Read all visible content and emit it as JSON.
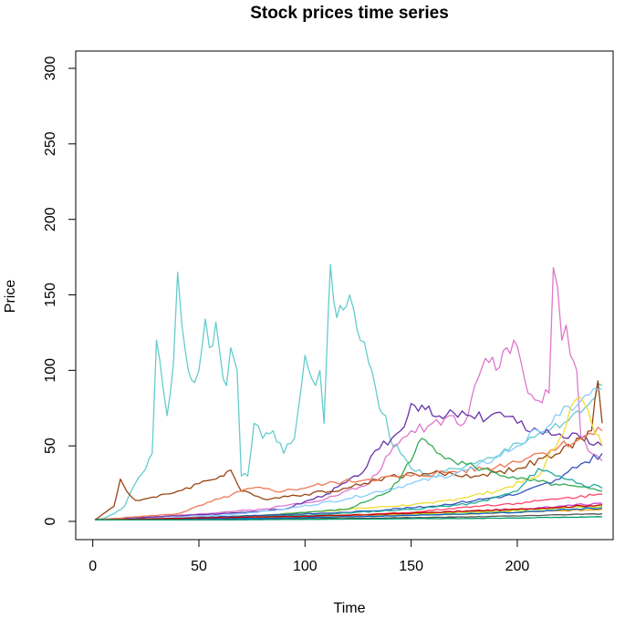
{
  "chart_data": {
    "type": "line",
    "title": "Stock prices time series",
    "xlabel": "Time",
    "ylabel": "Price",
    "xlim": [
      1,
      240
    ],
    "ylim": [
      0,
      300
    ],
    "xticks": [
      0,
      50,
      100,
      150,
      200
    ],
    "yticks": [
      0,
      50,
      100,
      150,
      200,
      250,
      300
    ],
    "legend": "none",
    "grid": false,
    "series": [
      {
        "color": "#66CCCC",
        "points": [
          [
            1,
            1
          ],
          [
            5,
            2
          ],
          [
            10,
            5
          ],
          [
            15,
            10
          ],
          [
            20,
            25
          ],
          [
            25,
            35
          ],
          [
            28,
            45
          ],
          [
            30,
            120
          ],
          [
            33,
            90
          ],
          [
            35,
            70
          ],
          [
            38,
            105
          ],
          [
            40,
            165
          ],
          [
            42,
            130
          ],
          [
            45,
            100
          ],
          [
            48,
            92
          ],
          [
            50,
            100
          ],
          [
            53,
            134
          ],
          [
            55,
            115
          ],
          [
            58,
            132
          ],
          [
            60,
            110
          ],
          [
            63,
            90
          ],
          [
            65,
            115
          ],
          [
            68,
            100
          ],
          [
            70,
            30
          ],
          [
            73,
            30
          ],
          [
            76,
            65
          ],
          [
            80,
            55
          ],
          [
            85,
            60
          ],
          [
            90,
            45
          ],
          [
            95,
            55
          ],
          [
            100,
            110
          ],
          [
            103,
            95
          ],
          [
            105,
            90
          ],
          [
            107,
            100
          ],
          [
            109,
            65
          ],
          [
            111,
            140
          ],
          [
            112,
            170
          ],
          [
            115,
            135
          ],
          [
            118,
            140
          ],
          [
            121,
            150
          ],
          [
            123,
            140
          ],
          [
            126,
            120
          ],
          [
            130,
            105
          ],
          [
            133,
            90
          ],
          [
            135,
            75
          ],
          [
            138,
            70
          ],
          [
            140,
            55
          ],
          [
            145,
            45
          ],
          [
            150,
            35
          ],
          [
            160,
            30
          ],
          [
            170,
            35
          ],
          [
            180,
            38
          ],
          [
            190,
            42
          ],
          [
            200,
            52
          ],
          [
            210,
            58
          ],
          [
            220,
            62
          ],
          [
            230,
            72
          ],
          [
            235,
            80
          ],
          [
            240,
            90
          ]
        ]
      },
      {
        "color": "#DD77CC",
        "points": [
          [
            1,
            1
          ],
          [
            20,
            2
          ],
          [
            50,
            5
          ],
          [
            80,
            8
          ],
          [
            110,
            15
          ],
          [
            130,
            25
          ],
          [
            140,
            45
          ],
          [
            150,
            60
          ],
          [
            160,
            65
          ],
          [
            170,
            70
          ],
          [
            175,
            65
          ],
          [
            180,
            90
          ],
          [
            185,
            108
          ],
          [
            190,
            100
          ],
          [
            195,
            115
          ],
          [
            200,
            116
          ],
          [
            205,
            85
          ],
          [
            210,
            80
          ],
          [
            215,
            85
          ],
          [
            217,
            168
          ],
          [
            219,
            155
          ],
          [
            221,
            120
          ],
          [
            223,
            130
          ],
          [
            225,
            110
          ],
          [
            228,
            100
          ],
          [
            230,
            55
          ],
          [
            235,
            45
          ],
          [
            240,
            40
          ]
        ]
      },
      {
        "color": "#6633AA",
        "points": [
          [
            1,
            1
          ],
          [
            30,
            3
          ],
          [
            60,
            5
          ],
          [
            90,
            8
          ],
          [
            110,
            18
          ],
          [
            125,
            30
          ],
          [
            135,
            48
          ],
          [
            145,
            60
          ],
          [
            150,
            78
          ],
          [
            155,
            77
          ],
          [
            160,
            70
          ],
          [
            165,
            68
          ],
          [
            170,
            72
          ],
          [
            180,
            68
          ],
          [
            190,
            72
          ],
          [
            200,
            65
          ],
          [
            210,
            60
          ],
          [
            220,
            58
          ],
          [
            230,
            55
          ],
          [
            240,
            50
          ]
        ]
      },
      {
        "color": "#994411",
        "points": [
          [
            1,
            1
          ],
          [
            10,
            10
          ],
          [
            13,
            28
          ],
          [
            16,
            20
          ],
          [
            20,
            14
          ],
          [
            30,
            16
          ],
          [
            40,
            20
          ],
          [
            50,
            25
          ],
          [
            60,
            30
          ],
          [
            65,
            34
          ],
          [
            70,
            20
          ],
          [
            80,
            15
          ],
          [
            100,
            18
          ],
          [
            120,
            22
          ],
          [
            140,
            30
          ],
          [
            160,
            32
          ],
          [
            180,
            30
          ],
          [
            200,
            35
          ],
          [
            220,
            45
          ],
          [
            230,
            55
          ],
          [
            235,
            60
          ],
          [
            238,
            93
          ],
          [
            240,
            65
          ]
        ]
      },
      {
        "color": "#EE7755",
        "points": [
          [
            1,
            1
          ],
          [
            20,
            3
          ],
          [
            40,
            5
          ],
          [
            60,
            15
          ],
          [
            75,
            22
          ],
          [
            90,
            20
          ],
          [
            110,
            25
          ],
          [
            130,
            28
          ],
          [
            150,
            30
          ],
          [
            170,
            33
          ],
          [
            190,
            36
          ],
          [
            210,
            45
          ],
          [
            230,
            55
          ],
          [
            240,
            60
          ]
        ]
      },
      {
        "color": "#88CCFF",
        "points": [
          [
            1,
            1
          ],
          [
            30,
            2
          ],
          [
            60,
            4
          ],
          [
            90,
            8
          ],
          [
            120,
            15
          ],
          [
            150,
            25
          ],
          [
            180,
            35
          ],
          [
            200,
            50
          ],
          [
            210,
            60
          ],
          [
            220,
            70
          ],
          [
            230,
            80
          ],
          [
            240,
            88
          ]
        ]
      },
      {
        "color": "#EEDD33",
        "points": [
          [
            1,
            1
          ],
          [
            40,
            2
          ],
          [
            80,
            4
          ],
          [
            120,
            8
          ],
          [
            160,
            12
          ],
          [
            190,
            20
          ],
          [
            210,
            30
          ],
          [
            220,
            55
          ],
          [
            225,
            75
          ],
          [
            230,
            82
          ],
          [
            235,
            65
          ],
          [
            240,
            50
          ]
        ]
      },
      {
        "color": "#33AA55",
        "points": [
          [
            1,
            1
          ],
          [
            40,
            2
          ],
          [
            80,
            4
          ],
          [
            120,
            8
          ],
          [
            140,
            20
          ],
          [
            150,
            40
          ],
          [
            155,
            55
          ],
          [
            160,
            50
          ],
          [
            170,
            40
          ],
          [
            180,
            36
          ],
          [
            190,
            32
          ],
          [
            200,
            28
          ],
          [
            220,
            24
          ],
          [
            240,
            20
          ]
        ]
      },
      {
        "color": "#3355BB",
        "points": [
          [
            1,
            1
          ],
          [
            40,
            2
          ],
          [
            80,
            4
          ],
          [
            120,
            6
          ],
          [
            160,
            10
          ],
          [
            200,
            18
          ],
          [
            220,
            28
          ],
          [
            230,
            38
          ],
          [
            240,
            45
          ]
        ]
      },
      {
        "color": "#FF4466",
        "points": [
          [
            1,
            1
          ],
          [
            50,
            2
          ],
          [
            100,
            3
          ],
          [
            150,
            6
          ],
          [
            180,
            10
          ],
          [
            200,
            12
          ],
          [
            220,
            15
          ],
          [
            240,
            18
          ]
        ]
      },
      {
        "color": "#22AA99",
        "points": [
          [
            1,
            1
          ],
          [
            50,
            2
          ],
          [
            100,
            4
          ],
          [
            150,
            8
          ],
          [
            180,
            12
          ],
          [
            200,
            20
          ],
          [
            210,
            35
          ],
          [
            220,
            30
          ],
          [
            230,
            25
          ],
          [
            240,
            22
          ]
        ]
      },
      {
        "color": "#CC44CC",
        "points": [
          [
            1,
            1
          ],
          [
            50,
            2
          ],
          [
            100,
            3
          ],
          [
            150,
            5
          ],
          [
            200,
            8
          ],
          [
            240,
            12
          ]
        ]
      },
      {
        "color": "#AADD22",
        "points": [
          [
            1,
            1
          ],
          [
            60,
            2
          ],
          [
            120,
            4
          ],
          [
            180,
            6
          ],
          [
            240,
            10
          ]
        ]
      },
      {
        "color": "#FF9900",
        "points": [
          [
            1,
            1
          ],
          [
            60,
            2
          ],
          [
            120,
            3
          ],
          [
            180,
            5
          ],
          [
            240,
            8
          ]
        ]
      },
      {
        "color": "#555555",
        "points": [
          [
            1,
            1
          ],
          [
            60,
            1.5
          ],
          [
            120,
            2
          ],
          [
            180,
            3
          ],
          [
            240,
            5
          ]
        ]
      },
      {
        "color": "#0066CC",
        "points": [
          [
            1,
            1
          ],
          [
            50,
            1.5
          ],
          [
            100,
            2.5
          ],
          [
            150,
            4
          ],
          [
            200,
            6
          ],
          [
            240,
            9
          ]
        ]
      },
      {
        "color": "#CC0000",
        "points": [
          [
            1,
            1
          ],
          [
            40,
            2
          ],
          [
            80,
            3
          ],
          [
            120,
            4
          ],
          [
            160,
            6
          ],
          [
            200,
            8
          ],
          [
            240,
            11
          ]
        ]
      },
      {
        "color": "#009966",
        "points": [
          [
            1,
            1
          ],
          [
            60,
            1
          ],
          [
            120,
            1.5
          ],
          [
            180,
            2
          ],
          [
            240,
            3
          ]
        ]
      }
    ]
  }
}
